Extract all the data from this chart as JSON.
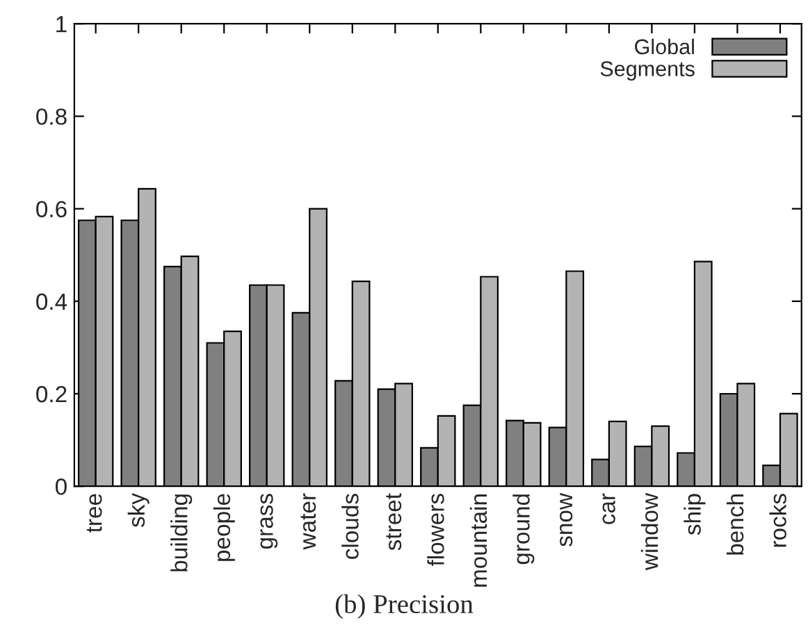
{
  "chart_data": {
    "type": "bar",
    "categories": [
      "tree",
      "sky",
      "building",
      "people",
      "grass",
      "water",
      "clouds",
      "street",
      "flowers",
      "mountain",
      "ground",
      "snow",
      "car",
      "window",
      "ship",
      "bench",
      "rocks"
    ],
    "series": [
      {
        "name": "Global",
        "color": "#808080",
        "values": [
          0.575,
          0.575,
          0.475,
          0.31,
          0.435,
          0.375,
          0.228,
          0.21,
          0.083,
          0.175,
          0.142,
          0.127,
          0.058,
          0.086,
          0.072,
          0.2,
          0.045
        ]
      },
      {
        "name": "Segments",
        "color": "#b3b3b3",
        "values": [
          0.583,
          0.643,
          0.497,
          0.335,
          0.435,
          0.6,
          0.443,
          0.222,
          0.152,
          0.453,
          0.137,
          0.465,
          0.14,
          0.13,
          0.486,
          0.222,
          0.157
        ]
      }
    ],
    "ylim": [
      0,
      1
    ],
    "yticks": [
      {
        "value": 0,
        "label": "0"
      },
      0.2,
      0.4,
      0.6,
      0.8,
      {
        "value": 1,
        "label": "1"
      }
    ],
    "legend": "top right",
    "grid": false,
    "annotations": [
      "(b) Precision"
    ]
  }
}
